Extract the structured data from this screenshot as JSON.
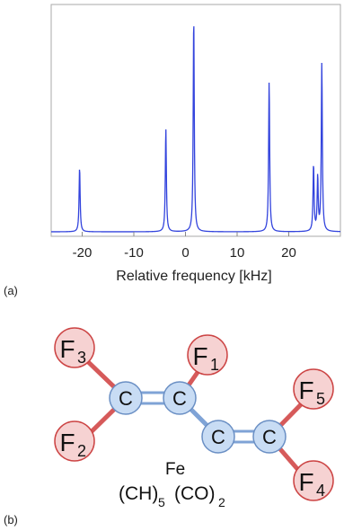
{
  "panels": {
    "a": "(a)",
    "b": "(b)"
  },
  "chart_data": {
    "type": "line",
    "title": "",
    "xlabel": "Relative frequency [kHz]",
    "ylabel": "",
    "xlim": [
      -26,
      30
    ],
    "x_ticks": [
      "-20",
      "-10",
      "0",
      "10",
      "20"
    ],
    "x_tick_values": [
      -20,
      -10,
      0,
      10,
      20
    ],
    "grid": false,
    "series": [
      {
        "color": "#3344dd",
        "peaks": [
          {
            "x": -20.5,
            "height": 0.3
          },
          {
            "x": -3.8,
            "height": 0.48
          },
          {
            "x": 1.6,
            "height": 1.0
          },
          {
            "x": 16.2,
            "height": 0.7
          },
          {
            "x": 24.8,
            "height": 0.31
          },
          {
            "x": 25.6,
            "height": 0.25
          },
          {
            "x": 26.4,
            "height": 0.78
          }
        ]
      }
    ]
  },
  "molecule": {
    "atoms": [
      {
        "symbol": "F",
        "subscript": "3"
      },
      {
        "symbol": "F",
        "subscript": "2"
      },
      {
        "symbol": "F",
        "subscript": "1"
      },
      {
        "symbol": "F",
        "subscript": "5"
      },
      {
        "symbol": "F",
        "subscript": "4"
      },
      {
        "symbol": "C",
        "subscript": ""
      },
      {
        "symbol": "C",
        "subscript": ""
      },
      {
        "symbol": "C",
        "subscript": ""
      },
      {
        "symbol": "C",
        "subscript": ""
      }
    ],
    "formula": {
      "ch": "(CH)",
      "ch_sub": "5",
      "fe": "Fe",
      "co": "(CO)",
      "co_sub": "2"
    },
    "colors": {
      "fluorine_fill": "#f6d2d2",
      "fluorine_stroke": "#cc4444",
      "carbon_fill": "#c8dcf4",
      "carbon_stroke": "#6a8fc4",
      "cf_bond": "#d65a5a",
      "cc_bond": "#7fa3d6"
    }
  }
}
